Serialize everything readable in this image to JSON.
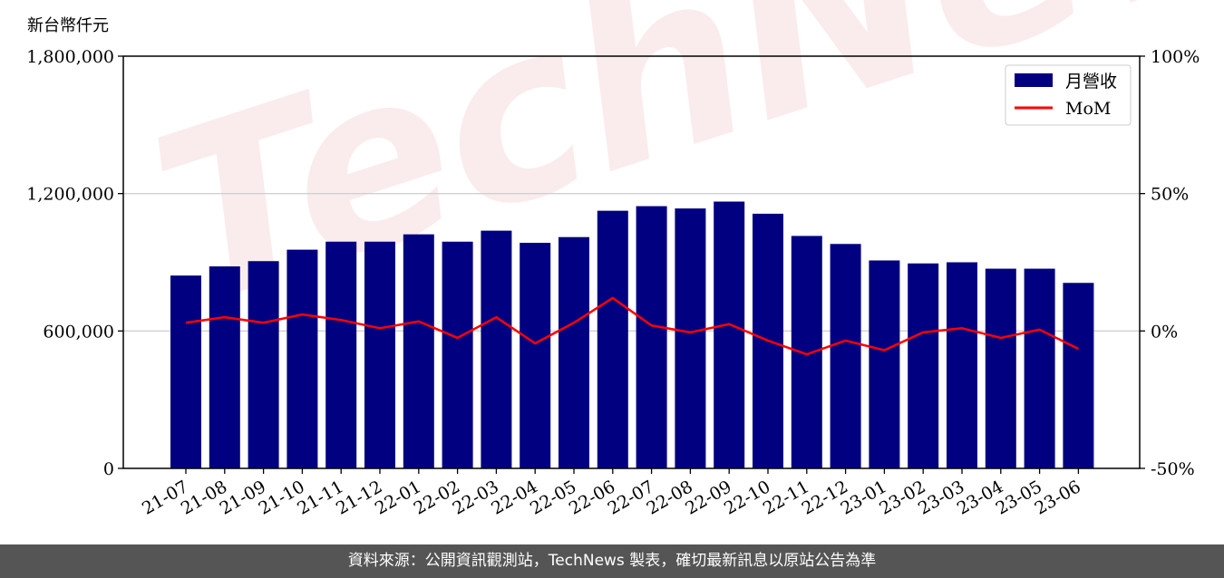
{
  "unit_label": "新台幣仟元",
  "watermark": "TechNews",
  "footer_text": "資料來源：公開資訊觀測站，TechNews 製表，確切最新訊息以原站公告為準",
  "colors": {
    "bar": "#000080",
    "line": "#ff0000",
    "grid": "#d0d0d0",
    "footer_bg": "#555555"
  },
  "chart_data": {
    "type": "bar",
    "categories": [
      "21-07",
      "21-08",
      "21-09",
      "21-10",
      "21-11",
      "21-12",
      "22-01",
      "22-02",
      "22-03",
      "22-04",
      "22-05",
      "22-06",
      "22-07",
      "22-08",
      "22-09",
      "22-10",
      "22-11",
      "22-12",
      "23-01",
      "23-02",
      "23-03",
      "23-04",
      "23-05",
      "23-06"
    ],
    "series": [
      {
        "name": "月營收",
        "axis": "left",
        "type": "bar",
        "values": [
          842000,
          882000,
          905000,
          955000,
          990000,
          990000,
          1022000,
          990000,
          1038000,
          985000,
          1010000,
          1125000,
          1145000,
          1135000,
          1165000,
          1112000,
          1015000,
          980000,
          908000,
          895000,
          900000,
          872000,
          872000,
          810000
        ]
      },
      {
        "name": "MoM",
        "axis": "right",
        "type": "line",
        "unit": "%",
        "values": [
          3,
          5,
          3,
          6,
          4,
          1,
          3.5,
          -2.5,
          5,
          -4.5,
          3,
          12,
          2,
          -0.5,
          2.5,
          -3.5,
          -8.5,
          -3.5,
          -7,
          -0.5,
          1,
          -2.5,
          0.5,
          -6.5
        ]
      }
    ],
    "left_axis": {
      "ylim": [
        0,
        1800000
      ],
      "ticks": [
        0,
        600000,
        1200000,
        1800000
      ],
      "tick_labels": [
        "0",
        "600,000",
        "1,200,000",
        "1,800,000"
      ]
    },
    "right_axis": {
      "ylim": [
        -50,
        100
      ],
      "ticks": [
        -50,
        0,
        50,
        100
      ],
      "tick_labels": [
        "-50%",
        "0%",
        "50%",
        "100%"
      ]
    },
    "grid": "horizontal",
    "legend": "top-right"
  }
}
